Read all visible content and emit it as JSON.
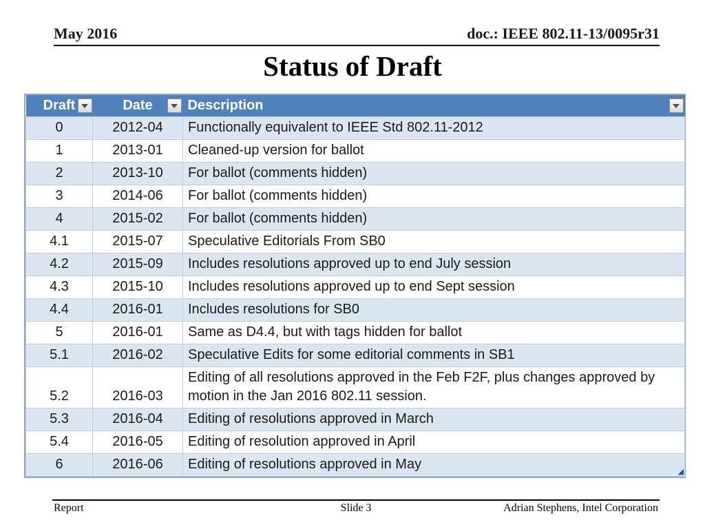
{
  "header": {
    "left": "May 2016",
    "right": "doc.: IEEE 802.11-13/0095r31"
  },
  "title": "Status of Draft",
  "table": {
    "columns": [
      {
        "label": "Draft"
      },
      {
        "label": "Date"
      },
      {
        "label": "Description"
      }
    ],
    "rows": [
      {
        "draft": "0",
        "date": "2012-04",
        "description": "Functionally equivalent to IEEE Std 802.11-2012"
      },
      {
        "draft": "1",
        "date": "2013-01",
        "description": "Cleaned-up version for ballot"
      },
      {
        "draft": "2",
        "date": "2013-10",
        "description": "For ballot (comments hidden)"
      },
      {
        "draft": "3",
        "date": "2014-06",
        "description": "For ballot (comments hidden)"
      },
      {
        "draft": "4",
        "date": "2015-02",
        "description": "For ballot (comments hidden)"
      },
      {
        "draft": "4.1",
        "date": "2015-07",
        "description": "Speculative Editorials From SB0"
      },
      {
        "draft": "4.2",
        "date": "2015-09",
        "description": "Includes resolutions approved up to end July session"
      },
      {
        "draft": "4.3",
        "date": "2015-10",
        "description": "Includes resolutions approved up to end Sept session"
      },
      {
        "draft": "4.4",
        "date": "2016-01",
        "description": "Includes resolutions for SB0"
      },
      {
        "draft": "5",
        "date": "2016-01",
        "description": "Same as D4.4,  but with tags hidden for ballot"
      },
      {
        "draft": "5.1",
        "date": "2016-02",
        "description": "Speculative Edits for some editorial comments in SB1"
      },
      {
        "draft": "5.2",
        "date": "2016-03",
        "description": "Editing of all resolutions approved in the Feb F2F,  plus changes approved by motion in the Jan 2016 802.11 session."
      },
      {
        "draft": "5.3",
        "date": "2016-04",
        "description": "Editing of resolutions approved in March"
      },
      {
        "draft": "5.4",
        "date": "2016-05",
        "description": "Editing of resolution approved in April"
      },
      {
        "draft": "6",
        "date": "2016-06",
        "description": "Editing of resolutions approved in May"
      }
    ]
  },
  "icons": {
    "filter_dropdown": "▼",
    "resize_handle": "◢"
  },
  "footer": {
    "left": "Report",
    "center": "Slide 3",
    "right": "Adrian Stephens, Intel Corporation"
  },
  "colors": {
    "table_header_bg": "#4f81bd",
    "banded_row_bg": "#dce6f1",
    "table_border": "#95b3d7",
    "text": "#1a1a1a"
  }
}
